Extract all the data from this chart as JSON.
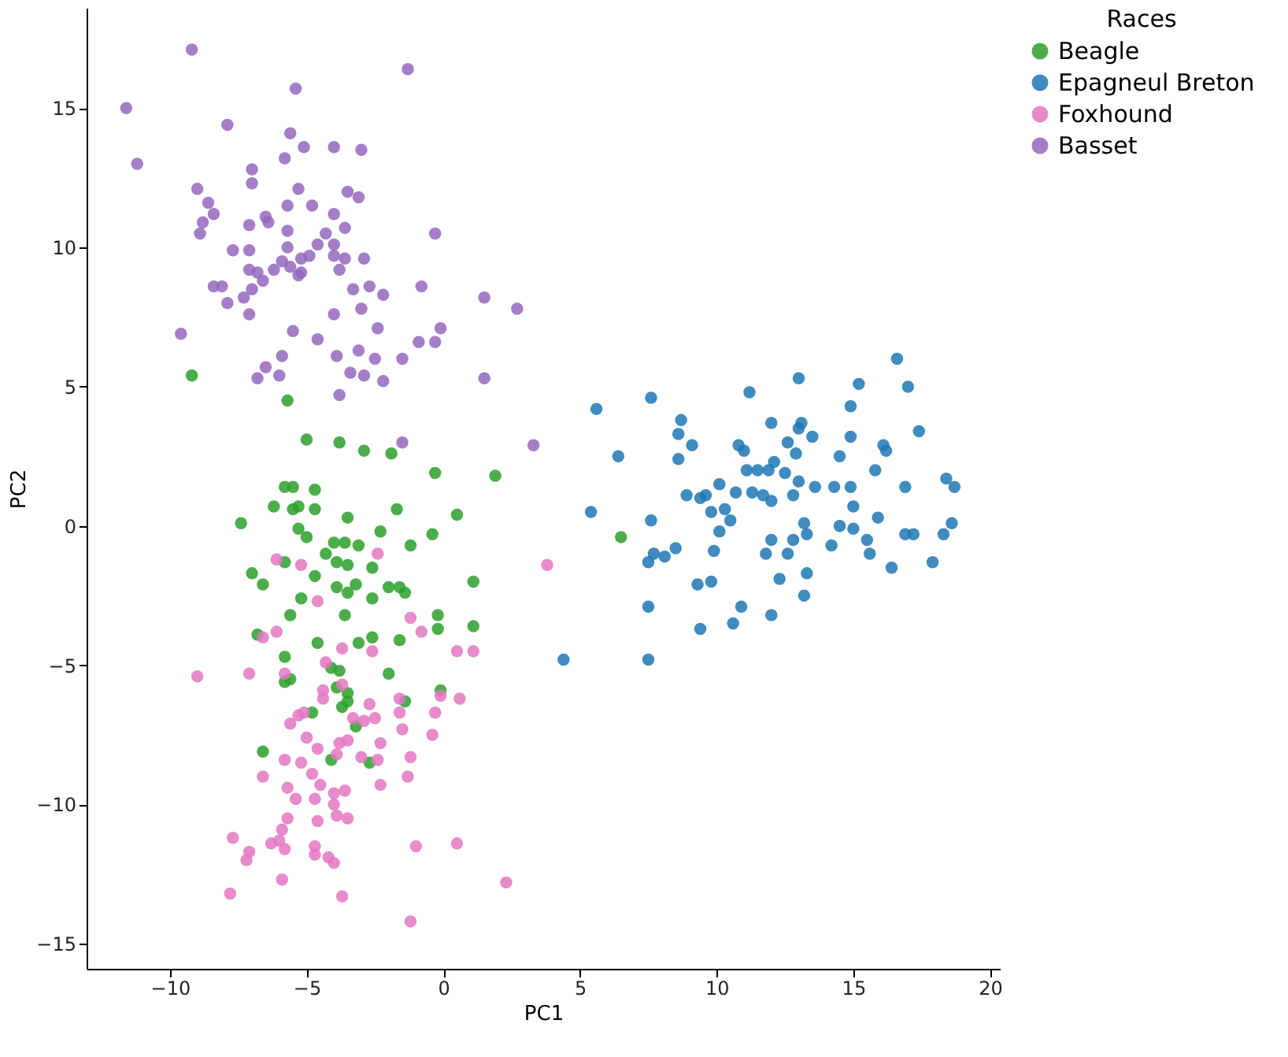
{
  "chart_data": {
    "type": "scatter",
    "xlabel": "PC1",
    "ylabel": "PC2",
    "legend_title": "Races",
    "legend": "top right",
    "grid": false,
    "marker": "circle",
    "xlim": [
      -13.05,
      20.36
    ],
    "ylim": [
      -15.9,
      18.6
    ],
    "xticks": [
      -10,
      -5,
      0,
      5,
      10,
      15,
      20
    ],
    "yticks": [
      -15,
      -10,
      -5,
      0,
      5,
      10,
      15
    ],
    "series": [
      {
        "name": "Beagle",
        "color": "#2ca02c",
        "x": [
          -9.2,
          -5.7,
          -5.0,
          -3.8,
          -2.9,
          -1.9,
          1.9,
          -0.3,
          -5.8,
          -5.5,
          -4.7,
          -6.2,
          -5.5,
          -5.3,
          -4.7,
          -3.5,
          -1.7,
          0.5,
          -7.4,
          -5.3,
          -5.0,
          -4.0,
          -3.6,
          -3.1,
          -2.3,
          -0.4,
          -1.2,
          6.5,
          -5.8,
          -4.3,
          -3.9,
          -3.5,
          -2.6,
          -7.0,
          -6.6,
          -4.7,
          -3.9,
          -3.2,
          -2.0,
          -1.6,
          1.1,
          -5.2,
          -3.5,
          -2.6,
          -1.4,
          -5.6,
          -3.6,
          -0.2,
          -0.2,
          1.1,
          -6.8,
          -5.8,
          -4.6,
          -3.1,
          -2.6,
          -1.6,
          -4.1,
          -3.8,
          -2.0,
          -5.6,
          -5.8,
          -3.9,
          -3.5,
          -3.5,
          -1.4,
          -4.8,
          -3.7,
          -3.2,
          -6.6,
          -4.1,
          -2.7,
          -0.1
        ],
        "values": [
          5.4,
          4.5,
          3.1,
          3.0,
          2.7,
          2.6,
          1.8,
          1.9,
          1.4,
          1.4,
          1.3,
          0.7,
          0.6,
          0.7,
          0.6,
          0.3,
          0.6,
          0.4,
          0.1,
          -0.1,
          -0.4,
          -0.6,
          -0.6,
          -0.7,
          -0.2,
          -0.3,
          -0.7,
          -0.4,
          -1.3,
          -1.0,
          -1.3,
          -1.4,
          -1.5,
          -1.7,
          -2.1,
          -1.8,
          -2.2,
          -2.1,
          -2.2,
          -2.2,
          -2.0,
          -2.6,
          -2.4,
          -2.6,
          -2.4,
          -3.2,
          -3.2,
          -3.2,
          -3.7,
          -3.6,
          -3.9,
          -4.7,
          -4.2,
          -4.2,
          -4.0,
          -4.1,
          -5.1,
          -5.2,
          -5.3,
          -5.5,
          -5.6,
          -5.8,
          -6.0,
          -6.3,
          -6.3,
          -6.7,
          -6.5,
          -7.2,
          -8.1,
          -8.4,
          -8.5,
          -5.9
        ]
      },
      {
        "name": "Epagneul Breton",
        "color": "#1f77b4",
        "x": [
          5.6,
          7.6,
          6.4,
          8.7,
          8.6,
          9.1,
          8.6,
          5.4,
          7.6,
          8.9,
          9.4,
          9.6,
          9.8,
          10.1,
          10.3,
          10.5,
          10.7,
          10.8,
          11.0,
          11.2,
          11.1,
          11.3,
          11.5,
          11.7,
          11.9,
          12.0,
          12.1,
          12.0,
          12.0,
          12.5,
          12.6,
          12.8,
          12.8,
          12.9,
          13.0,
          13.0,
          13.1,
          13.0,
          13.2,
          13.3,
          13.6,
          13.5,
          14.2,
          14.3,
          14.5,
          14.5,
          14.9,
          14.9,
          14.9,
          15.0,
          15.0,
          15.2,
          15.5,
          15.6,
          15.8,
          15.9,
          16.1,
          16.2,
          16.4,
          16.6,
          16.9,
          16.9,
          17.0,
          17.2,
          17.4,
          17.9,
          18.3,
          18.4,
          18.6,
          18.7,
          10.1,
          9.9,
          9.3,
          9.4,
          9.8,
          10.6,
          10.9,
          11.8,
          12.3,
          12.0,
          13.3,
          13.2,
          12.6,
          8.1,
          7.7,
          7.5,
          7.5,
          7.5,
          4.4,
          8.5
        ],
        "values": [
          4.2,
          4.6,
          2.5,
          3.8,
          3.3,
          2.9,
          2.4,
          0.5,
          0.2,
          1.1,
          1.0,
          1.1,
          0.5,
          1.5,
          0.6,
          0.2,
          1.2,
          2.9,
          2.7,
          4.8,
          2.0,
          1.2,
          2.0,
          1.1,
          2.0,
          3.7,
          2.3,
          0.9,
          -0.5,
          1.9,
          3.0,
          1.1,
          -0.5,
          2.6,
          5.3,
          3.5,
          3.7,
          1.6,
          0.1,
          -0.3,
          1.4,
          3.2,
          -0.7,
          1.4,
          2.5,
          0.0,
          1.4,
          3.2,
          4.3,
          0.7,
          -0.1,
          5.1,
          -0.5,
          -1.0,
          2.0,
          0.3,
          2.9,
          2.7,
          -1.5,
          6.0,
          1.4,
          -0.3,
          5.0,
          -0.3,
          3.4,
          -1.3,
          -0.3,
          1.7,
          0.1,
          1.4,
          -0.2,
          -0.9,
          -2.1,
          -3.7,
          -2.0,
          -3.5,
          -2.9,
          -1.0,
          -1.9,
          -3.2,
          -1.7,
          -2.5,
          -1.0,
          -1.1,
          -1.0,
          -1.3,
          -2.9,
          -4.8,
          -4.8,
          -0.8
        ]
      },
      {
        "name": "Foxhound",
        "color": "#e377c2",
        "x": [
          -9.0,
          -7.1,
          -6.6,
          -6.1,
          -5.8,
          -4.3,
          -4.6,
          -5.2,
          -6.1,
          -2.4,
          3.8,
          -1.2,
          -0.8,
          -3.7,
          -4.4,
          -3.7,
          -2.6,
          0.5,
          1.1,
          -4.4,
          -2.7,
          -1.6,
          -0.1,
          0.6,
          -5.3,
          -5.1,
          -3.3,
          -2.9,
          -2.5,
          -1.6,
          -0.3,
          -5.6,
          -5.0,
          -3.8,
          -3.5,
          -2.3,
          -1.5,
          -0.4,
          -4.6,
          -3.9,
          -3.0,
          -2.4,
          -1.2,
          -5.8,
          -5.2,
          -4.8,
          -6.6,
          -5.7,
          -5.4,
          -4.5,
          -4.0,
          -3.6,
          -2.3,
          -1.3,
          -4.7,
          -4.0,
          -3.9,
          -5.7,
          -4.6,
          -3.5,
          -7.7,
          -7.1,
          -7.2,
          -6.3,
          -6.0,
          -5.8,
          -4.7,
          -4.7,
          -4.2,
          -4.0,
          -5.9,
          -1.0,
          0.5,
          2.3,
          -7.8,
          -3.7,
          -1.2,
          -5.9
        ],
        "values": [
          -5.4,
          -5.3,
          -4.0,
          -3.8,
          -5.3,
          -4.9,
          -2.7,
          -1.4,
          -1.2,
          -1.0,
          -1.4,
          -3.3,
          -3.8,
          -4.4,
          -5.9,
          -5.7,
          -4.5,
          -4.5,
          -4.5,
          -6.2,
          -6.4,
          -6.2,
          -6.1,
          -6.2,
          -6.8,
          -6.7,
          -6.9,
          -7.0,
          -6.9,
          -6.7,
          -6.7,
          -7.1,
          -7.6,
          -7.8,
          -7.7,
          -7.8,
          -7.3,
          -7.5,
          -8.0,
          -8.2,
          -8.3,
          -8.4,
          -8.3,
          -8.4,
          -8.5,
          -8.9,
          -9.0,
          -9.4,
          -9.8,
          -9.3,
          -9.6,
          -9.5,
          -9.3,
          -9.0,
          -9.8,
          -10.0,
          -10.4,
          -10.5,
          -10.6,
          -10.5,
          -11.2,
          -11.7,
          -12.0,
          -11.4,
          -11.3,
          -11.6,
          -11.5,
          -11.8,
          -11.9,
          -12.1,
          -12.7,
          -11.5,
          -11.4,
          -12.8,
          -13.2,
          -13.3,
          -14.2,
          -10.9
        ]
      },
      {
        "name": "Basset",
        "color": "#9467bd",
        "x": [
          -9.2,
          -11.6,
          -11.2,
          -1.3,
          -5.4,
          -7.9,
          -5.6,
          -7.0,
          -5.1,
          -4.0,
          -3.0,
          -5.8,
          -9.0,
          -8.6,
          -7.0,
          -5.3,
          -3.5,
          -3.1,
          -8.4,
          -8.8,
          -8.9,
          -6.5,
          -6.4,
          -5.7,
          -4.8,
          -4.0,
          -7.1,
          -5.7,
          -4.3,
          -3.6,
          -0.3,
          -7.7,
          -7.1,
          -5.7,
          -4.6,
          -4.0,
          -4.9,
          -5.2,
          -4.0,
          -3.6,
          -6.2,
          -5.9,
          -5.6,
          -7.1,
          -6.8,
          -5.3,
          -3.8,
          -8.4,
          -8.1,
          -6.6,
          -5.2,
          -2.9,
          -2.7,
          -3.3,
          -2.2,
          -0.8,
          -7.3,
          -7.0,
          -7.9,
          1.5,
          2.7,
          -4.0,
          -3.0,
          -5.5,
          -7.1,
          -2.4,
          -0.1,
          -9.6,
          -4.6,
          -3.1,
          -0.9,
          -0.3,
          -5.9,
          -3.9,
          -1.5,
          -2.5,
          -6.5,
          -6.8,
          -3.4,
          -2.9,
          -2.2,
          -3.8,
          1.5,
          3.3,
          -1.5,
          -6.0
        ],
        "values": [
          17.1,
          15.0,
          13.0,
          16.4,
          15.7,
          14.4,
          14.1,
          12.8,
          13.6,
          13.6,
          13.5,
          13.2,
          12.1,
          11.6,
          12.3,
          12.1,
          12.0,
          11.8,
          11.2,
          10.9,
          10.5,
          11.1,
          10.9,
          11.5,
          11.5,
          11.2,
          10.8,
          10.6,
          10.5,
          10.7,
          10.5,
          9.9,
          9.9,
          10.0,
          10.1,
          10.1,
          9.7,
          9.6,
          9.7,
          9.6,
          9.2,
          9.5,
          9.3,
          9.2,
          9.1,
          9.0,
          9.2,
          8.6,
          8.6,
          8.8,
          9.1,
          9.6,
          8.6,
          8.5,
          8.3,
          8.6,
          8.2,
          8.5,
          8.0,
          8.2,
          7.8,
          7.6,
          7.8,
          7.0,
          7.6,
          7.1,
          7.1,
          6.9,
          6.7,
          6.3,
          6.6,
          6.6,
          6.1,
          6.1,
          6.0,
          6.0,
          5.7,
          5.3,
          5.5,
          5.4,
          5.2,
          4.7,
          5.3,
          2.9,
          3.0,
          5.4
        ]
      }
    ]
  }
}
